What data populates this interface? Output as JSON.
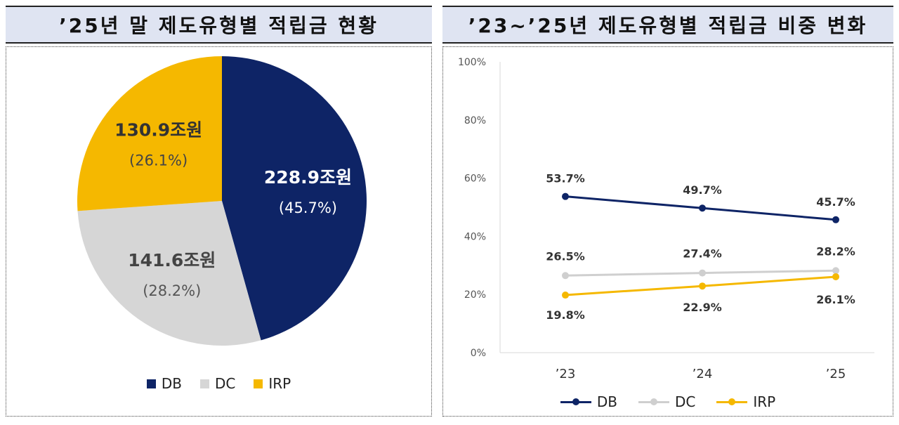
{
  "left_panel": {
    "title": "’25년 말 제도유형별 적립금 현황"
  },
  "right_panel": {
    "title": "’23~’25년 제도유형별 적립금 비중 변화"
  },
  "colors": {
    "DB": "#0e2466",
    "DC": "#d6d6d6",
    "IRP": "#f5b800"
  },
  "chart_data": [
    {
      "type": "pie",
      "slices": [
        {
          "name": "DB",
          "value": 228.9,
          "value_label": "228.9조원",
          "percent_label": "(45.7%)"
        },
        {
          "name": "DC",
          "value": 141.6,
          "value_label": "141.6조원",
          "percent_label": "(28.2%)"
        },
        {
          "name": "IRP",
          "value": 130.9,
          "value_label": "130.9조원",
          "percent_label": "(26.1%)"
        }
      ],
      "legend": [
        "DB",
        "DC",
        "IRP"
      ],
      "legend_position": "bottom"
    },
    {
      "type": "line",
      "categories": [
        "’23",
        "’24",
        "’25"
      ],
      "series": [
        {
          "name": "DB",
          "values": [
            53.7,
            49.7,
            45.7
          ],
          "labels": [
            "53.7%",
            "49.7%",
            "45.7%"
          ]
        },
        {
          "name": "DC",
          "values": [
            26.5,
            27.4,
            28.2
          ],
          "labels": [
            "26.5%",
            "27.4%",
            "28.2%"
          ]
        },
        {
          "name": "IRP",
          "values": [
            19.8,
            22.9,
            26.1
          ],
          "labels": [
            "19.8%",
            "22.9%",
            "26.1%"
          ]
        }
      ],
      "ylim": [
        0,
        100
      ],
      "yticks": [
        "0%",
        "20%",
        "40%",
        "60%",
        "80%",
        "100%"
      ],
      "grid": false,
      "legend": [
        "DB",
        "DC",
        "IRP"
      ],
      "legend_position": "bottom"
    }
  ]
}
